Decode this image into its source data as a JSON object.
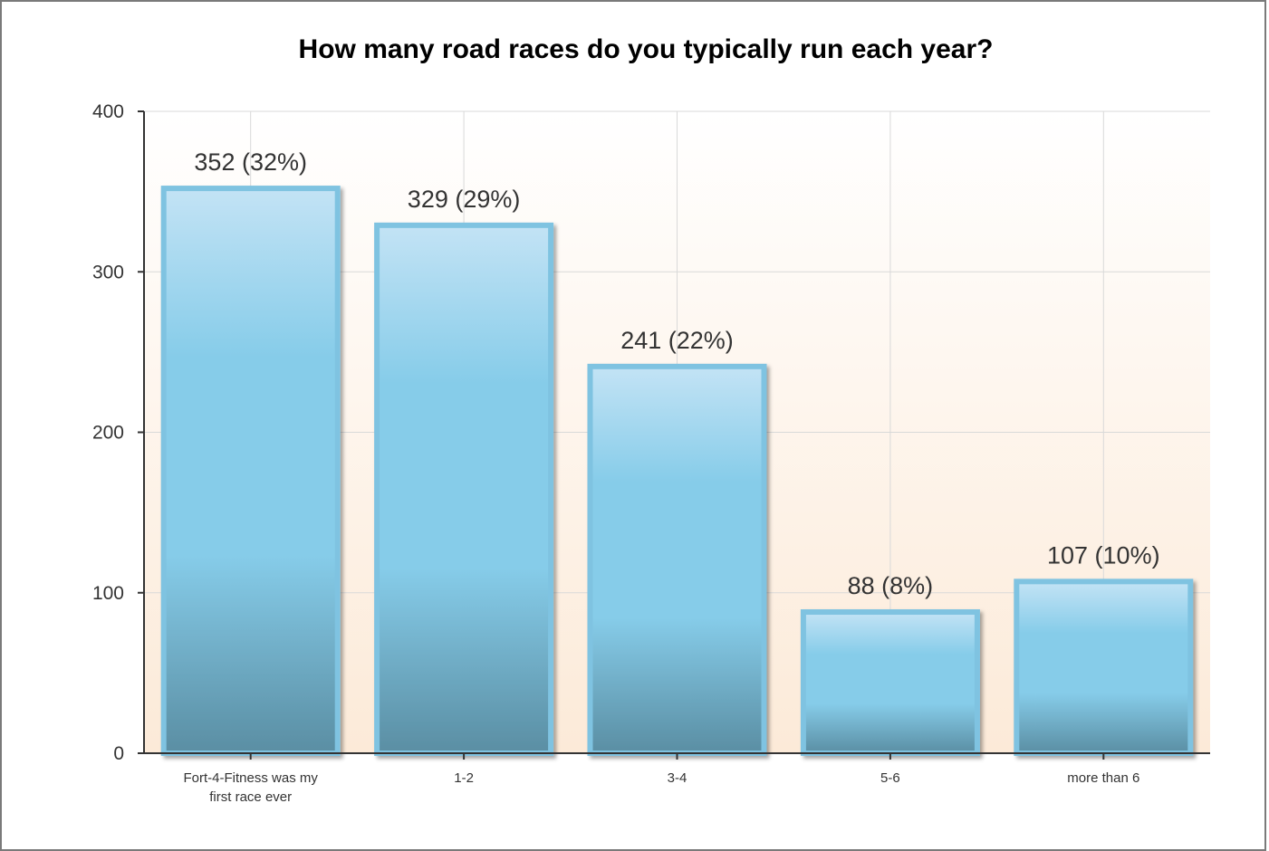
{
  "chart_data": {
    "type": "bar",
    "title": "How many road races do you typically run each year?",
    "categories": [
      [
        "Fort-4-Fitness was my",
        "first race ever"
      ],
      [
        "1-2"
      ],
      [
        "3-4"
      ],
      [
        "5-6"
      ],
      [
        "more than 6"
      ]
    ],
    "values": [
      352,
      329,
      241,
      88,
      107
    ],
    "data_labels": [
      "352 (32%)",
      "329 (29%)",
      "241 (22%)",
      "88 (8%)",
      "107 (10%)"
    ],
    "ylim": [
      0,
      400
    ],
    "yticks": [
      0,
      100,
      200,
      300,
      400
    ],
    "grid": true,
    "legend": "none",
    "colors": {
      "bar_top": "#c3e3f5",
      "bar_mid": "#86cce9",
      "bar_bottom": "#5a8ea3",
      "bar_border": "#7fc3e1",
      "background_top": "#ffffff",
      "background_bottom": "#fcead8",
      "gridline": "#d9d9d9",
      "axis": "#333333"
    }
  }
}
